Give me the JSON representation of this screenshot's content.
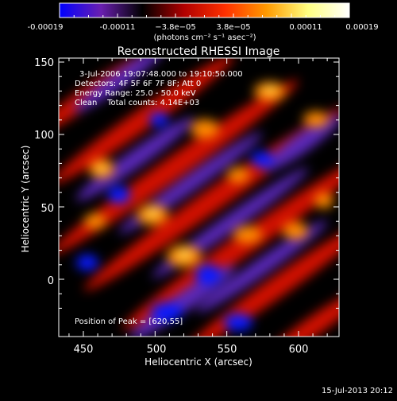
{
  "colorbar": {
    "ticks": [
      "-0.00019",
      "-0.00011",
      "−3.8e−05",
      "3.8e−05",
      "0.00011",
      "0.00019"
    ],
    "units": "(photons cm⁻² s⁻¹ asec⁻²)",
    "stops": [
      "#0000ff",
      "#6a1fb0",
      "#000000",
      "#b00000",
      "#ff3000",
      "#ff9a00",
      "#ffff80",
      "#ffffff"
    ]
  },
  "plot": {
    "title": "Reconstructed RHESSI Image",
    "info_lines": [
      "3-Jul-2006 19:07:48.000 to 19:10:50.000",
      "Detectors: 4F 5F 6F 7F 8F; Att 0",
      "Energy Range: 25.0 - 50.0 keV",
      "Clean    Total counts: 4.14E+03"
    ],
    "peak_label": "Position of Peak = [620,55]",
    "xlabel": "Heliocentric X (arcsec)",
    "ylabel": "Heliocentric Y (arcsec)",
    "xticks": [
      "450",
      "500",
      "550",
      "600"
    ],
    "yticks": [
      "0",
      "50",
      "100",
      "150"
    ]
  },
  "footer": {
    "timestamp": "15-Jul-2013 20:12"
  }
}
